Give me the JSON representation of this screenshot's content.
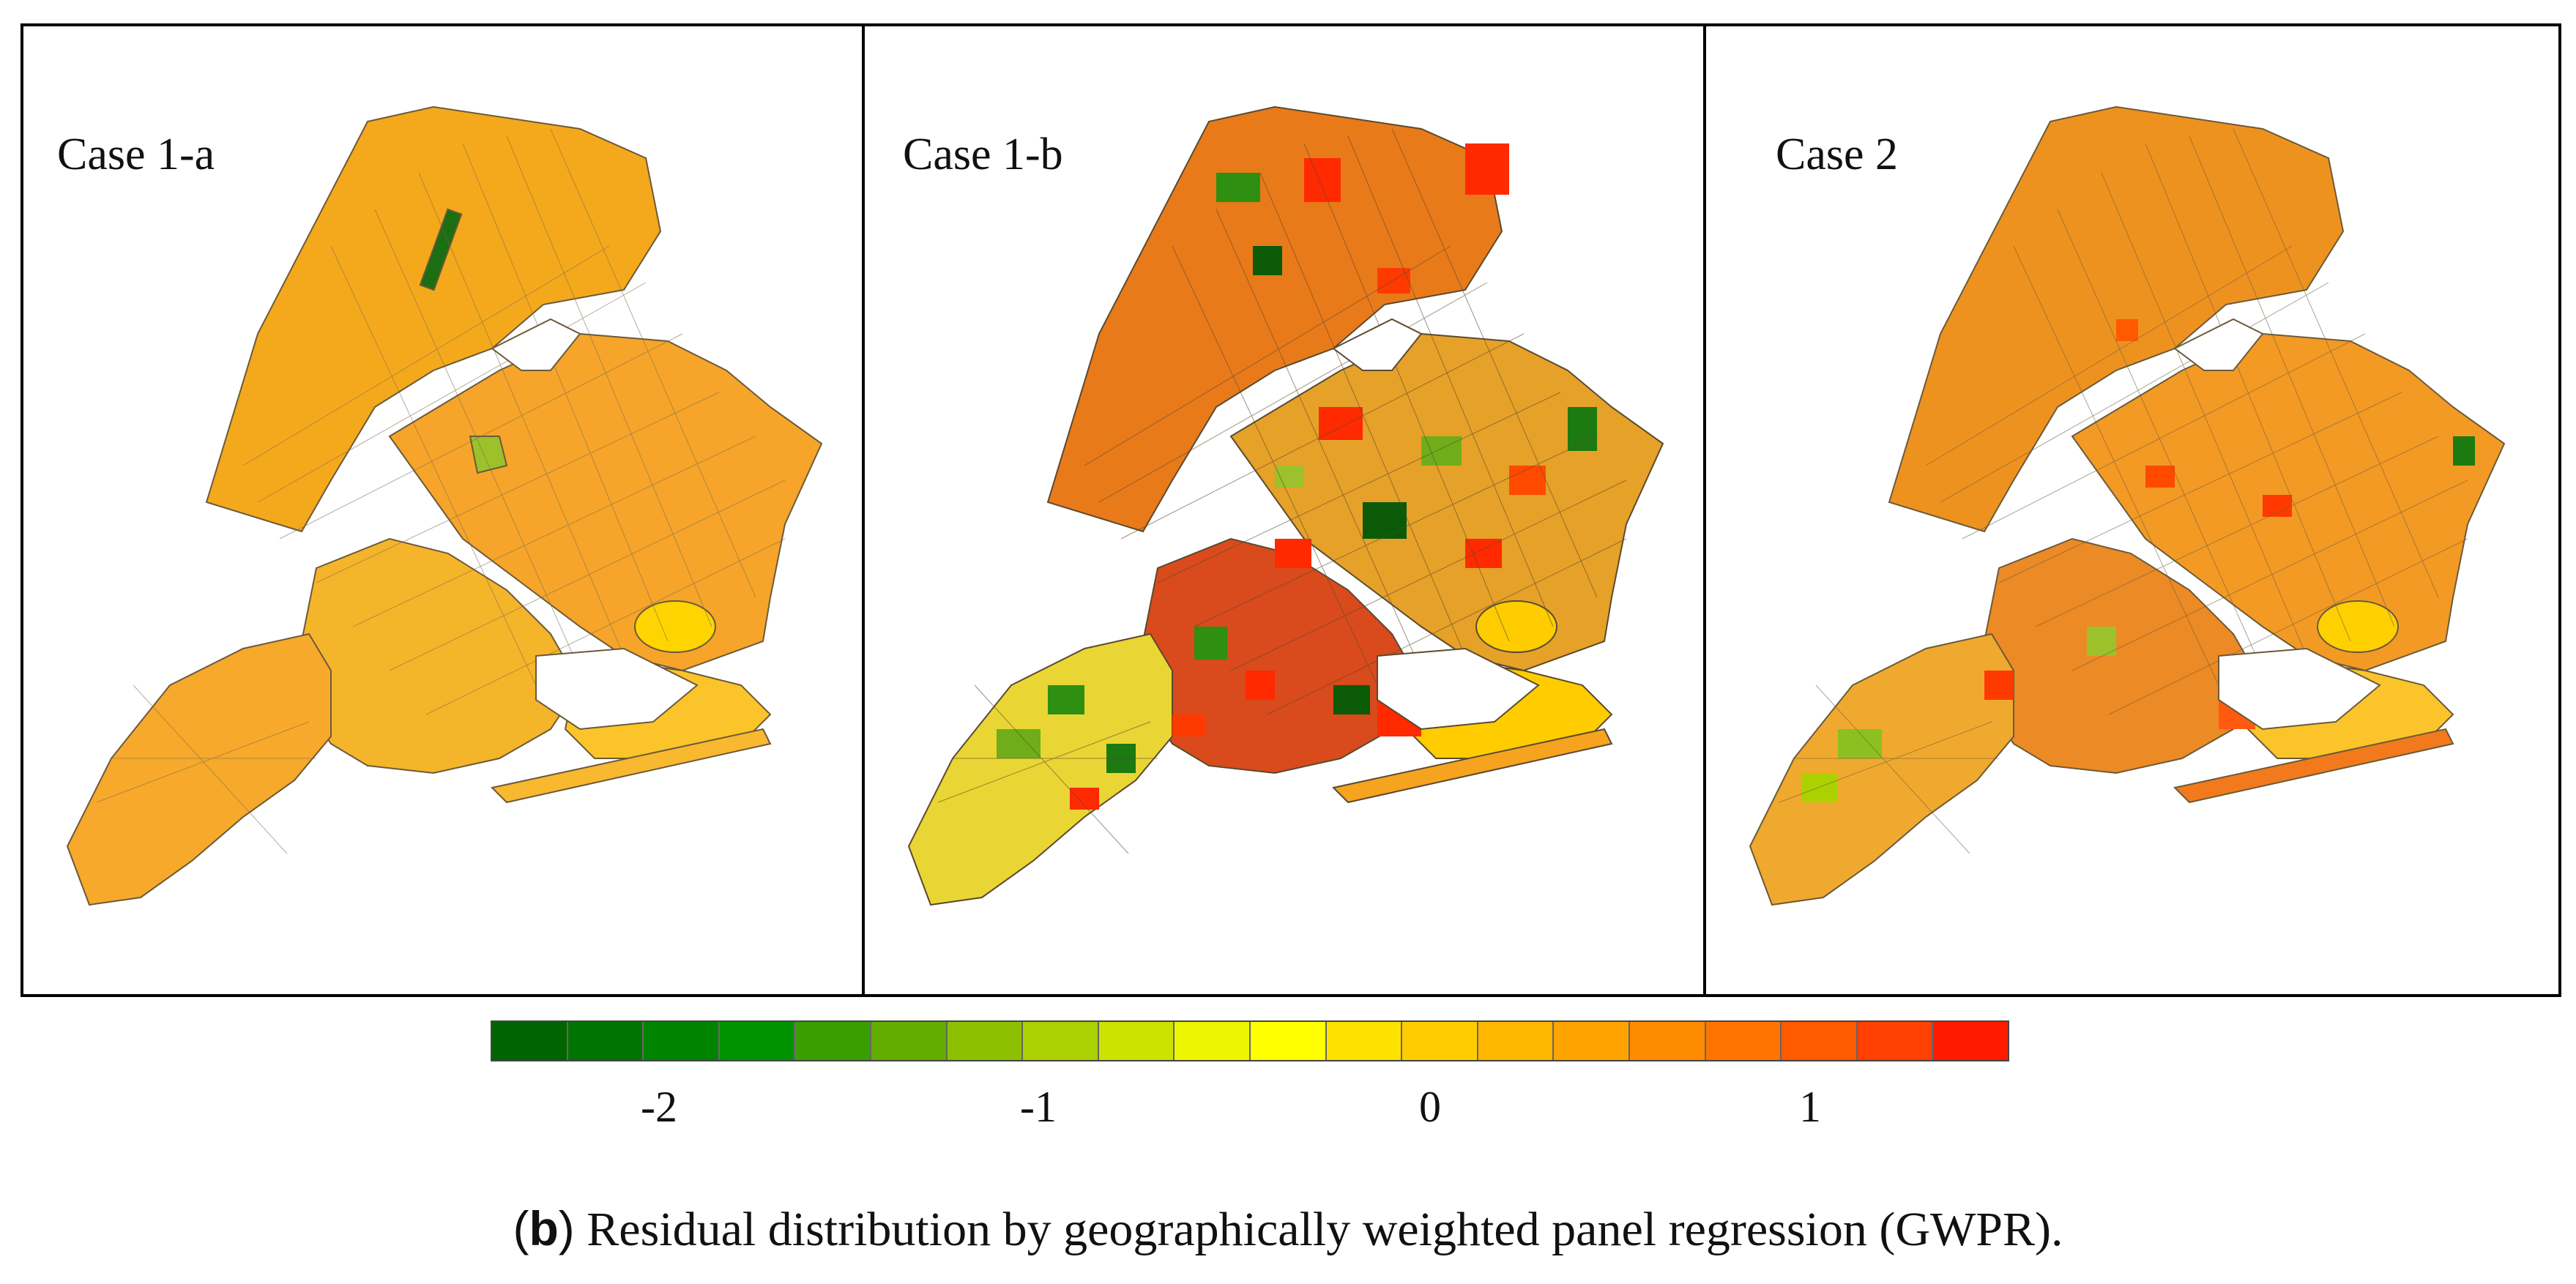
{
  "panels": [
    {
      "label": "Case 1-a"
    },
    {
      "label": "Case 1-b"
    },
    {
      "label": "Case 2"
    }
  ],
  "legend": {
    "colors": [
      "#006400",
      "#007300",
      "#008400",
      "#009300",
      "#3a9e00",
      "#62ad00",
      "#8cc000",
      "#abd200",
      "#cce300",
      "#edf500",
      "#ffff00",
      "#ffe100",
      "#ffcc00",
      "#ffb700",
      "#ffa300",
      "#ff8c00",
      "#ff7300",
      "#ff5a00",
      "#ff4000",
      "#ff1a00"
    ],
    "ticks": [
      "-2",
      "-1",
      "0",
      "1"
    ]
  },
  "caption": {
    "tag_open": "(",
    "tag_letter": "b",
    "tag_close": ")",
    "text": " Residual distribution by geographically weighted panel regression (GWPR)."
  }
}
